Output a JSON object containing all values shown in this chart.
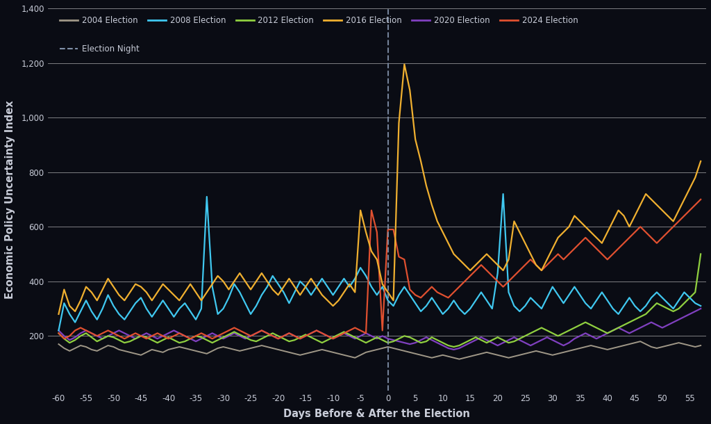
{
  "background_color": "#0a0c14",
  "text_color": "#c8ccd8",
  "grid_color": "#ffffff",
  "xlabel": "Days Before & After the Election",
  "ylabel": "Economic Policy Uncertainty Index",
  "xlim": [
    -62,
    58
  ],
  "ylim": [
    0,
    1400
  ],
  "yticks": [
    200,
    400,
    600,
    800,
    1000,
    1200,
    1400
  ],
  "xticks": [
    -60,
    -55,
    -50,
    -45,
    -40,
    -35,
    -30,
    -25,
    -20,
    -15,
    -10,
    -5,
    0,
    5,
    10,
    15,
    20,
    25,
    30,
    35,
    40,
    45,
    50,
    55
  ],
  "election_night_x": 0,
  "series": {
    "2004": {
      "color": "#a09888",
      "linewidth": 1.4
    },
    "2008": {
      "color": "#40c8f0",
      "linewidth": 1.6
    },
    "2012": {
      "color": "#90d040",
      "linewidth": 1.6
    },
    "2016": {
      "color": "#f0b030",
      "linewidth": 1.6
    },
    "2020": {
      "color": "#8040c0",
      "linewidth": 1.6
    },
    "2024": {
      "color": "#e05030",
      "linewidth": 1.6
    }
  }
}
